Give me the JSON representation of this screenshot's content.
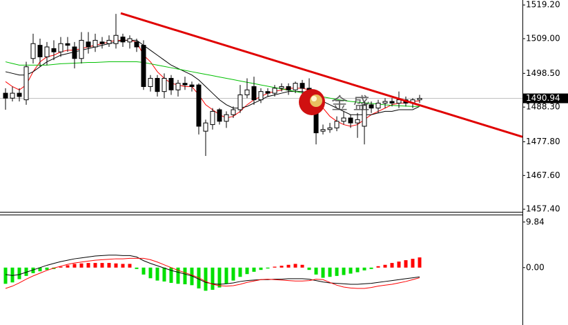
{
  "chart_data": [
    {
      "type": "candlestick",
      "xlim": [
        -0.8,
        74.9
      ],
      "ylim": [
        1456.6,
        1520.7
      ],
      "yticks": [
        {
          "value": 1519.2,
          "label": "1519.20"
        },
        {
          "value": 1509.0,
          "label": "1509.00"
        },
        {
          "value": 1498.5,
          "label": "1498.50"
        },
        {
          "value": 1488.3,
          "label": "1488.30"
        },
        {
          "value": 1477.8,
          "label": "1477.80"
        },
        {
          "value": 1467.6,
          "label": "1467.60"
        },
        {
          "value": 1457.4,
          "label": "1457.40"
        }
      ],
      "last_price": 1490.94,
      "up_color": "#ffffff",
      "down_color": "#000000",
      "candles": {
        "open": [
          1492.5,
          1491.0,
          1492.5,
          1490.5,
          1503.0,
          1507.0,
          1503.5,
          1506.0,
          1505.0,
          1507.5,
          1506.5,
          1503.0,
          1508.0,
          1506.5,
          1508.0,
          1507.5,
          1507.5,
          1509.5,
          1508.0,
          1508.0,
          1507.0,
          1494.5,
          1497.0,
          1493.0,
          1497.0,
          1493.5,
          1495.5,
          1495.0,
          1495.0,
          1481.0,
          1483.0,
          1487.5,
          1484.0,
          1486.0,
          1487.5,
          1492.0,
          1494.5,
          1490.5,
          1493.0,
          1492.5,
          1494.0,
          1494.5,
          1493.5,
          1495.5,
          1494.0,
          1487.5,
          1481.0,
          1481.5,
          1482.0,
          1484.0,
          1485.0,
          1483.5,
          1482.5,
          1489.0,
          1488.0,
          1489.5,
          1490.0,
          1489.5,
          1490.5,
          1489.5,
          1490.5
        ],
        "high": [
          1494.0,
          1494.5,
          1494.0,
          1502.0,
          1510.5,
          1509.0,
          1508.0,
          1508.5,
          1509.5,
          1509.5,
          1508.0,
          1511.0,
          1511.0,
          1510.5,
          1509.5,
          1510.0,
          1516.5,
          1510.5,
          1510.0,
          1509.0,
          1508.5,
          1498.0,
          1498.0,
          1498.5,
          1498.0,
          1496.5,
          1497.5,
          1496.0,
          1495.5,
          1484.5,
          1488.0,
          1488.0,
          1487.0,
          1488.5,
          1495.0,
          1497.0,
          1497.5,
          1494.0,
          1494.0,
          1495.0,
          1495.5,
          1495.5,
          1496.0,
          1496.5,
          1497.0,
          1489.0,
          1483.0,
          1483.5,
          1485.5,
          1487.0,
          1486.0,
          1486.5,
          1490.0,
          1490.0,
          1490.5,
          1491.0,
          1491.0,
          1493.0,
          1491.5,
          1491.0,
          1492.0
        ],
        "low": [
          1487.5,
          1490.0,
          1490.0,
          1489.0,
          1501.5,
          1500.5,
          1501.0,
          1502.5,
          1503.5,
          1505.0,
          1500.0,
          1501.5,
          1504.5,
          1505.0,
          1506.0,
          1506.5,
          1506.0,
          1506.5,
          1506.0,
          1505.0,
          1493.5,
          1493.0,
          1491.5,
          1491.0,
          1492.0,
          1491.5,
          1493.5,
          1493.0,
          1480.0,
          1473.5,
          1481.5,
          1483.0,
          1482.0,
          1485.0,
          1486.5,
          1491.0,
          1489.0,
          1489.5,
          1491.5,
          1491.5,
          1493.0,
          1492.0,
          1492.5,
          1492.0,
          1490.0,
          1477.0,
          1480.0,
          1480.5,
          1481.0,
          1483.0,
          1482.0,
          1479.0,
          1477.0,
          1486.5,
          1486.5,
          1488.0,
          1488.5,
          1488.0,
          1488.5,
          1488.0,
          1489.5
        ],
        "close": [
          1491.0,
          1492.5,
          1491.5,
          1500.5,
          1507.5,
          1503.5,
          1506.5,
          1505.0,
          1507.5,
          1507.0,
          1503.0,
          1508.5,
          1506.5,
          1508.5,
          1507.5,
          1508.5,
          1510.0,
          1508.0,
          1509.0,
          1506.5,
          1494.5,
          1497.0,
          1493.0,
          1497.0,
          1493.5,
          1495.5,
          1495.0,
          1494.5,
          1482.5,
          1483.5,
          1487.0,
          1484.0,
          1486.0,
          1487.5,
          1492.0,
          1493.5,
          1490.5,
          1493.0,
          1492.5,
          1494.0,
          1494.5,
          1493.5,
          1495.5,
          1494.0,
          1492.0,
          1480.5,
          1481.5,
          1482.0,
          1484.0,
          1485.0,
          1483.5,
          1484.5,
          1489.0,
          1488.0,
          1489.5,
          1490.0,
          1489.5,
          1490.5,
          1489.5,
          1490.5,
          1490.94
        ]
      },
      "lines": [
        {
          "color": "#ff0000",
          "values": [
            1496,
            1494.5,
            1493.5,
            1495,
            1499,
            1502,
            1503.5,
            1504,
            1505,
            1505.5,
            1505.5,
            1506,
            1506.5,
            1507,
            1507.5,
            1508,
            1508.5,
            1508.5,
            1508.5,
            1508,
            1504,
            1502,
            1499,
            1497,
            1495.5,
            1495,
            1494.5,
            1494.5,
            1492,
            1489,
            1487.5,
            1486,
            1485,
            1485.5,
            1487,
            1489,
            1490.5,
            1491.5,
            1492.5,
            1493,
            1493.5,
            1494,
            1494,
            1494,
            1493.5,
            1491,
            1488,
            1485.5,
            1484,
            1483,
            1482.5,
            1483,
            1484.5,
            1486,
            1487,
            1488,
            1489,
            1489.5,
            1489.5,
            1490,
            1490.2
          ]
        },
        {
          "color": "#000000",
          "values": [
            1499,
            1498.5,
            1498,
            1498,
            1499,
            1500.5,
            1502,
            1503,
            1504,
            1504.5,
            1505,
            1505.5,
            1506,
            1506.5,
            1507,
            1507.5,
            1508,
            1508.5,
            1508.5,
            1508.5,
            1507,
            1505.5,
            1504,
            1502.5,
            1501,
            1500,
            1499,
            1498,
            1496.5,
            1494.5,
            1492.5,
            1490.5,
            1489,
            1488,
            1488,
            1488.5,
            1489.5,
            1490.5,
            1491.5,
            1492,
            1492.5,
            1493,
            1493,
            1493,
            1492.5,
            1491.5,
            1490,
            1489,
            1488,
            1487,
            1486,
            1486,
            1486,
            1486,
            1486.5,
            1487,
            1487,
            1487.5,
            1487.5,
            1487.5,
            1488.5
          ]
        },
        {
          "color": "#00c000",
          "values": [
            1502,
            1501.5,
            1501,
            1501,
            1501,
            1501,
            1501,
            1501.2,
            1501.4,
            1501.5,
            1501.6,
            1501.7,
            1501.8,
            1501.8,
            1501.9,
            1502,
            1502,
            1502,
            1502,
            1502,
            1501.8,
            1501.4,
            1501,
            1500.6,
            1500.2,
            1499.8,
            1499.4,
            1499,
            1498.6,
            1498.2,
            1497.8,
            1497.4,
            1497,
            1496.6,
            1496.2,
            1495.8,
            1495.4,
            1495,
            1494.6,
            1494.2,
            1493.8,
            1493.4,
            1493,
            1492.6,
            1492.2,
            1491.8,
            1491.4,
            1491,
            1490.6,
            1490.3,
            1490,
            1489.8,
            1489.6,
            1489.4,
            1489.2,
            1489,
            1488.8,
            1488.7,
            1488.6,
            1488.5,
            1488.5
          ]
        }
      ],
      "trendline": {
        "color": "#e00000",
        "x": [
          16.7,
          74.9
        ],
        "y": [
          1516.7,
          1479.3
        ]
      },
      "watermark": "金 盛"
    },
    {
      "type": "macd",
      "xlim": [
        -0.8,
        74.9
      ],
      "ylim": [
        -12.4,
        11.3
      ],
      "yticks": [
        9.84,
        {
          "value": 0,
          "label": "0.00"
        }
      ],
      "positive_color": "#ff0000",
      "negative_color": "#00e000",
      "histogram": [
        -3.5,
        -3.2,
        -2.5,
        -1.8,
        -1.2,
        -0.8,
        -0.5,
        -0.3,
        0.2,
        0.5,
        0.8,
        0.9,
        1.0,
        1.0,
        1.0,
        1.0,
        0.9,
        0.8,
        0.8,
        -0.3,
        -1.5,
        -2.3,
        -2.8,
        -3.0,
        -3.3,
        -3.5,
        -3.6,
        -3.8,
        -4.5,
        -5.0,
        -4.8,
        -4.3,
        -3.5,
        -2.8,
        -2.0,
        -1.4,
        -0.9,
        -0.5,
        -0.2,
        0.2,
        0.4,
        0.6,
        0.8,
        0.6,
        -0.5,
        -1.5,
        -2.2,
        -2.0,
        -1.8,
        -1.6,
        -1.3,
        -1.0,
        -0.6,
        -0.3,
        0.3,
        0.6,
        1.0,
        1.3,
        1.6,
        1.9,
        2.2
      ],
      "lines": [
        {
          "color": "#000000",
          "values": [
            -1.5,
            -1.7,
            -1.5,
            -1.0,
            -0.5,
            0,
            0.5,
            0.9,
            1.3,
            1.6,
            1.9,
            2.1,
            2.3,
            2.5,
            2.6,
            2.7,
            2.7,
            2.6,
            2.6,
            2.3,
            1.5,
            0.9,
            0.4,
            -0.1,
            -0.6,
            -1.0,
            -1.4,
            -1.8,
            -2.5,
            -3.2,
            -3.5,
            -3.6,
            -3.5,
            -3.3,
            -3.0,
            -2.8,
            -2.7,
            -2.6,
            -2.6,
            -2.5,
            -2.5,
            -2.4,
            -2.4,
            -2.4,
            -2.5,
            -2.8,
            -3.1,
            -3.3,
            -3.4,
            -3.5,
            -3.6,
            -3.6,
            -3.5,
            -3.4,
            -3.2,
            -3.0,
            -2.8,
            -2.6,
            -2.4,
            -2.2,
            -2.0
          ]
        },
        {
          "color": "#ff0000",
          "values": [
            -4.5,
            -4.0,
            -3.3,
            -2.5,
            -1.8,
            -1.2,
            -0.6,
            -0.1,
            0.3,
            0.7,
            1.0,
            1.2,
            1.4,
            1.6,
            1.7,
            1.8,
            1.9,
            1.9,
            2.0,
            2.0,
            2.0,
            1.7,
            1.2,
            0.6,
            0,
            -0.6,
            -1.1,
            -1.6,
            -2.2,
            -3.0,
            -3.6,
            -3.9,
            -4.0,
            -3.9,
            -3.6,
            -3.2,
            -2.9,
            -2.6,
            -2.5,
            -2.6,
            -2.7,
            -2.8,
            -2.9,
            -2.9,
            -2.8,
            -2.5,
            -2.6,
            -3.2,
            -3.8,
            -4.2,
            -4.4,
            -4.5,
            -4.5,
            -4.3,
            -4.0,
            -3.8,
            -3.6,
            -3.3,
            -3.0,
            -2.6,
            -2.2
          ]
        }
      ]
    }
  ]
}
